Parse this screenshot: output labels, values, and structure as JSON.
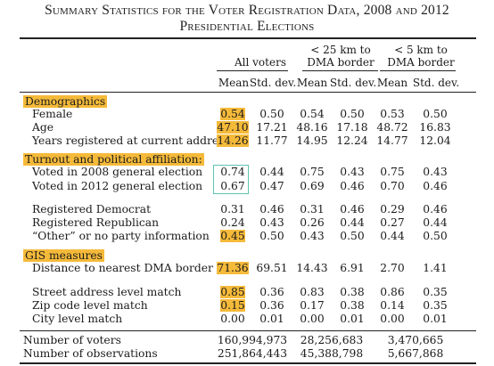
{
  "title": {
    "line1": "Summary Statistics for the Voter Registration Data, 2008 and 2012",
    "line2": "Presidential Elections"
  },
  "columns": {
    "all_voters": "All voters",
    "lt25_line1": "< 25 km to",
    "lt25_line2": "DMA border",
    "lt5_line1": "< 5 km to",
    "lt5_line2": "DMA border",
    "mean": "Mean",
    "sd": "Std. dev."
  },
  "sections": {
    "demographics": "Demographics",
    "turnout": "Turnout and political affiliation:",
    "gis": "GIS measures"
  },
  "rows": [
    {
      "label": "Female",
      "values": [
        "0.54",
        "0.50",
        "0.54",
        "0.50",
        "0.53",
        "0.50"
      ],
      "highlight_mean": true
    },
    {
      "label": "Age",
      "values": [
        "47.10",
        "17.21",
        "48.16",
        "17.18",
        "48.72",
        "16.83"
      ],
      "highlight_mean": true
    },
    {
      "label": "Years registered at current address",
      "values": [
        "14.26",
        "11.77",
        "14.95",
        "12.24",
        "14.77",
        "12.04"
      ],
      "highlight_mean": true
    },
    {
      "label": "Voted in 2008 general election",
      "values": [
        "0.74",
        "0.44",
        "0.75",
        "0.43",
        "0.75",
        "0.43"
      ],
      "highlight_mean": false
    },
    {
      "label": "Voted in 2012 general election",
      "values": [
        "0.67",
        "0.47",
        "0.69",
        "0.46",
        "0.70",
        "0.46"
      ],
      "highlight_mean": false
    },
    {
      "label": "Registered Democrat",
      "values": [
        "0.31",
        "0.46",
        "0.31",
        "0.46",
        "0.29",
        "0.46"
      ],
      "highlight_mean": false
    },
    {
      "label": "Registered Republican",
      "values": [
        "0.24",
        "0.43",
        "0.26",
        "0.44",
        "0.27",
        "0.44"
      ],
      "highlight_mean": false
    },
    {
      "label": "“Other” or no party information",
      "values": [
        "0.45",
        "0.50",
        "0.43",
        "0.50",
        "0.44",
        "0.50"
      ],
      "highlight_mean": true
    },
    {
      "label": "Distance to nearest DMA border (km)",
      "values": [
        "71.36",
        "69.51",
        "14.43",
        "6.91",
        "2.70",
        "1.41"
      ],
      "highlight_mean": true
    },
    {
      "label": "Street address level match",
      "values": [
        "0.85",
        "0.36",
        "0.83",
        "0.38",
        "0.86",
        "0.35"
      ],
      "highlight_mean": true
    },
    {
      "label": "Zip code level match",
      "values": [
        "0.15",
        "0.36",
        "0.17",
        "0.38",
        "0.14",
        "0.35"
      ],
      "highlight_mean": true
    },
    {
      "label": "City level match",
      "values": [
        "0.00",
        "0.01",
        "0.00",
        "0.01",
        "0.00",
        "0.01"
      ],
      "highlight_mean": false
    }
  ],
  "totals": [
    {
      "label": "Number of voters",
      "values": [
        "160,994,973",
        "28,256,683",
        "3,470,665"
      ]
    },
    {
      "label": "Number of observations",
      "values": [
        "251,864,443",
        "45,388,798",
        "5,667,868"
      ]
    }
  ],
  "highlight_color": "#f5ba3a",
  "box_color": "#5ec3b0"
}
